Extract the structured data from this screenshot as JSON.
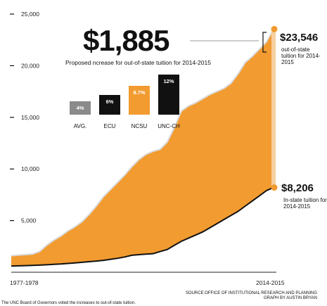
{
  "headline": {
    "amount": "$1,885",
    "subtitle": "Proposed ncrease for out-of-state tuition for 2014-2015"
  },
  "increase_bars": [
    {
      "name": "AVG.",
      "label": "4%",
      "value": 4,
      "color": "#8a8a8a"
    },
    {
      "name": "ECU",
      "label": "6%",
      "value": 6,
      "color": "#111111"
    },
    {
      "name": "NCSU",
      "label": "8.7%",
      "value": 8.7,
      "color": "#f29b30"
    },
    {
      "name": "UNC-CH",
      "label": "12%",
      "value": 12,
      "color": "#111111"
    }
  ],
  "callouts": {
    "out_value": "$23,546",
    "out_label": "out-of-state tuition for 2014-2015",
    "in_value": "$8,206",
    "in_label": "In-state tuition for 2014-2015"
  },
  "source_line1": "SOURCE:OFFICE OF INSTITUTIONAL RESEARCH AND PLANNING",
  "source_line2": "GRAPH BY AUSTIN BRYAN",
  "caption_fragment": "The UNC Board of Governors voted the increases to out-of-state tuition.",
  "chart_data": {
    "type": "area",
    "x_range": [
      "1977-1978",
      "2014-2015"
    ],
    "y_ticks": [
      "25,000",
      "20,000",
      "15,000",
      "10,000",
      "5,000"
    ],
    "ylim": [
      0,
      26000
    ],
    "xlabels": [
      "1977-1978",
      "2014-2015"
    ],
    "colors": {
      "out_of_state": "#f29b30",
      "in_state": "#111111",
      "band": "#f5d0a0"
    },
    "series": [
      {
        "name": "out-of-state",
        "values": [
          1600,
          1650,
          1700,
          1750,
          2000,
          2600,
          3100,
          3500,
          4000,
          4400,
          4900,
          5600,
          6400,
          7300,
          8000,
          8700,
          9400,
          10200,
          10900,
          11400,
          11700,
          11900,
          12600,
          14000,
          15600,
          16100,
          16400,
          16800,
          17200,
          17500,
          17800,
          18300,
          19200,
          20300,
          20900,
          21600,
          22300,
          23546
        ]
      },
      {
        "name": "in-state",
        "values": [
          600,
          620,
          640,
          660,
          690,
          720,
          760,
          800,
          850,
          900,
          960,
          1020,
          1080,
          1150,
          1250,
          1350,
          1480,
          1640,
          1700,
          1760,
          1800,
          2000,
          2200,
          2600,
          3000,
          3300,
          3600,
          3900,
          4300,
          4700,
          5100,
          5500,
          5900,
          6400,
          6900,
          7400,
          7900,
          8206
        ]
      }
    ],
    "annotations": [
      "$23,546",
      "$8,206",
      "$1,885"
    ]
  }
}
